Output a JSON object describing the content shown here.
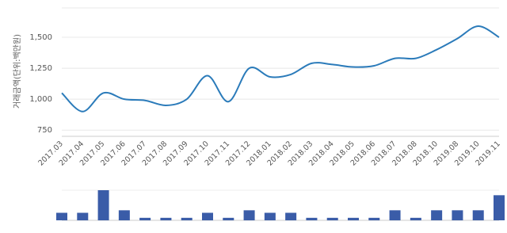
{
  "chart_data": [
    {
      "type": "line",
      "y_label": "거래금액(단위:백만원)",
      "categories": [
        "2017.03",
        "2017.04",
        "2017.05",
        "2017.06",
        "2017.07",
        "2017.08",
        "2017.09",
        "2017.10",
        "2017.11",
        "2017.12",
        "2018.01",
        "2018.02",
        "2018.03",
        "2018.04",
        "2018.05",
        "2018.06",
        "2018.07",
        "2018.08",
        "2018.10",
        "2019.08",
        "2019.10",
        "2019.11"
      ],
      "values": [
        1050,
        900,
        1050,
        1000,
        990,
        950,
        1000,
        1190,
        980,
        1250,
        1180,
        1200,
        1290,
        1280,
        1260,
        1270,
        1330,
        1330,
        1400,
        1490,
        1590,
        1500
      ],
      "color": "#2b7bba",
      "ylim": [
        700,
        1750
      ],
      "yticks": [
        {
          "value": 750,
          "label": "750"
        },
        {
          "value": 1000,
          "label": "1,000"
        },
        {
          "value": 1250,
          "label": "1,250"
        },
        {
          "value": 1500,
          "label": "1,500"
        }
      ],
      "grid": true
    },
    {
      "type": "bar",
      "values": [
        3,
        3,
        12,
        4,
        1,
        1,
        1,
        3,
        1,
        4,
        3,
        3,
        1,
        1,
        1,
        1,
        4,
        1,
        4,
        4,
        4,
        10
      ],
      "color": "#3a5ca8",
      "ylim": [
        0,
        12
      ]
    }
  ]
}
